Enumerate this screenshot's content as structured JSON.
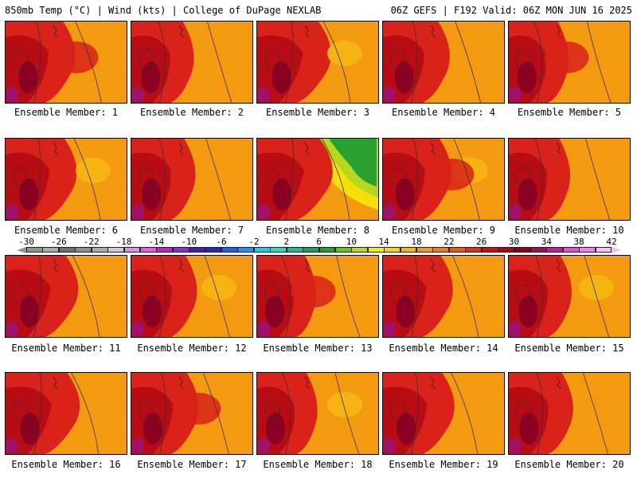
{
  "header": {
    "left": "850mb Temp (°C) | Wind (kts) | College of DuPage NEXLAB",
    "right": "06Z GEFS | F192 Valid: 06Z MON JUN 16 2025"
  },
  "colorbar": {
    "labels": [
      "-30",
      "-26",
      "-22",
      "-18",
      "-14",
      "-10",
      "-6",
      "-2",
      "2",
      "6",
      "10",
      "14",
      "18",
      "22",
      "26",
      "30",
      "34",
      "38",
      "42"
    ],
    "colors": [
      "#8a9a8a",
      "#a3b3a3",
      "#707070",
      "#8e8e8e",
      "#aaaaaa",
      "#c9c9d9",
      "#d890e8",
      "#e060e0",
      "#c020c8",
      "#8a30c8",
      "#4a1ab0",
      "#2828c0",
      "#2060e0",
      "#1e90ff",
      "#20c8f0",
      "#30d8c0",
      "#20b890",
      "#18a060",
      "#20a030",
      "#6cc020",
      "#b8d820",
      "#f0f000",
      "#f8d800",
      "#f8b800",
      "#f59a10",
      "#f07c10",
      "#e85a10",
      "#e03010",
      "#c81010",
      "#a80810",
      "#900010",
      "#a0105a",
      "#c0209a",
      "#e050d0",
      "#f080f0",
      "#f8c0f8"
    ]
  },
  "panels": [
    {
      "label": "Ensemble Member: 1",
      "variant": 1
    },
    {
      "label": "Ensemble Member: 2",
      "variant": 2
    },
    {
      "label": "Ensemble Member: 3",
      "variant": 3
    },
    {
      "label": "Ensemble Member: 4",
      "variant": 4
    },
    {
      "label": "Ensemble Member: 5",
      "variant": 5
    },
    {
      "label": "Ensemble Member: 6",
      "variant": 6
    },
    {
      "label": "Ensemble Member: 7",
      "variant": 7
    },
    {
      "label": "Ensemble Member: 8",
      "variant": 8
    },
    {
      "label": "Ensemble Member: 9",
      "variant": 9
    },
    {
      "label": "Ensemble Member: 10",
      "variant": 10
    },
    {
      "label": "Ensemble Member: 11",
      "variant": 11
    },
    {
      "label": "Ensemble Member: 12",
      "variant": 12
    },
    {
      "label": "Ensemble Member: 13",
      "variant": 13
    },
    {
      "label": "Ensemble Member: 14",
      "variant": 14
    },
    {
      "label": "Ensemble Member: 15",
      "variant": 15
    },
    {
      "label": "Ensemble Member: 16",
      "variant": 16
    },
    {
      "label": "Ensemble Member: 17",
      "variant": 17
    },
    {
      "label": "Ensemble Member: 18",
      "variant": 18
    },
    {
      "label": "Ensemble Member: 19",
      "variant": 19
    },
    {
      "label": "Ensemble Member: 20",
      "variant": 20
    }
  ]
}
